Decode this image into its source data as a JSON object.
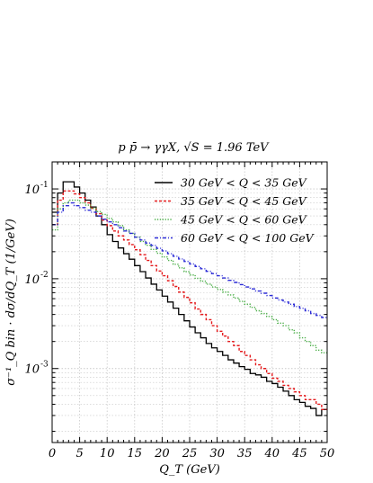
{
  "chart_data": {
    "type": "line",
    "title": "p p̄ → γγX, √S = 1.96 TeV",
    "xlabel": "Q_T (GeV)",
    "ylabel": "σ⁻¹_Q bin · dσ/dQ_T (1/GeV)",
    "xlim": [
      0,
      50
    ],
    "ylim": [
      0.00015,
      0.2
    ],
    "yscale": "log",
    "grid": true,
    "legend_position": "top-right",
    "x_ticks": [
      "0",
      "5",
      "10",
      "15",
      "20",
      "25",
      "30",
      "35",
      "40",
      "45",
      "50"
    ],
    "y_ticks": [
      {
        "base": "10",
        "exp": "-1"
      },
      {
        "base": "10",
        "exp": "-2"
      },
      {
        "base": "10",
        "exp": "-3"
      }
    ],
    "series": [
      {
        "name": "30 GeV < Q <  35 GeV",
        "color": "#000000",
        "style": "solid",
        "values": [
          0.055,
          0.09,
          0.12,
          0.12,
          0.105,
          0.09,
          0.075,
          0.063,
          0.05,
          0.04,
          0.031,
          0.026,
          0.022,
          0.019,
          0.0165,
          0.014,
          0.012,
          0.0102,
          0.0087,
          0.0075,
          0.0064,
          0.0055,
          0.0047,
          0.004,
          0.0034,
          0.0029,
          0.0025,
          0.0022,
          0.0019,
          0.0017,
          0.00155,
          0.0014,
          0.00125,
          0.00115,
          0.00105,
          0.00098,
          0.00088,
          0.00085,
          0.0008,
          0.00072,
          0.00068,
          0.00062,
          0.00056,
          0.0005,
          0.00045,
          0.00042,
          0.00038,
          0.00036,
          0.0003,
          0.00035
        ]
      },
      {
        "name": "35 GeV < Q <  45 GeV",
        "color": "#e41a1c",
        "style": "dashed",
        "values": [
          0.04,
          0.075,
          0.095,
          0.095,
          0.088,
          0.08,
          0.07,
          0.061,
          0.053,
          0.045,
          0.039,
          0.034,
          0.03,
          0.027,
          0.024,
          0.021,
          0.0185,
          0.016,
          0.014,
          0.0122,
          0.0108,
          0.0095,
          0.0082,
          0.0071,
          0.0062,
          0.0054,
          0.0046,
          0.004,
          0.0035,
          0.003,
          0.0026,
          0.0023,
          0.002,
          0.0018,
          0.00155,
          0.0014,
          0.00125,
          0.0011,
          0.001,
          0.00088,
          0.00078,
          0.00072,
          0.00065,
          0.0006,
          0.00055,
          0.0005,
          0.00045,
          0.00045,
          0.0004,
          0.00035
        ]
      },
      {
        "name": "45 GeV < Q <  60 GeV",
        "color": "#4daf4a",
        "style": "dotted",
        "values": [
          0.035,
          0.06,
          0.07,
          0.075,
          0.075,
          0.07,
          0.066,
          0.061,
          0.056,
          0.052,
          0.047,
          0.043,
          0.039,
          0.035,
          0.032,
          0.029,
          0.026,
          0.0236,
          0.0212,
          0.0192,
          0.0175,
          0.016,
          0.0145,
          0.0132,
          0.012,
          0.011,
          0.0101,
          0.0094,
          0.0087,
          0.0081,
          0.0076,
          0.0071,
          0.0066,
          0.0061,
          0.0056,
          0.0052,
          0.0048,
          0.0044,
          0.0041,
          0.0038,
          0.0035,
          0.0032,
          0.003,
          0.0027,
          0.0025,
          0.0022,
          0.002,
          0.0018,
          0.0016,
          0.0015
        ]
      },
      {
        "name": "60 GeV < Q < 100 GeV",
        "color": "#2b2bd6",
        "style": "dashdot",
        "values": [
          0.04,
          0.055,
          0.065,
          0.07,
          0.065,
          0.062,
          0.058,
          0.055,
          0.05,
          0.046,
          0.043,
          0.04,
          0.037,
          0.034,
          0.032,
          0.029,
          0.027,
          0.025,
          0.0235,
          0.0218,
          0.0204,
          0.019,
          0.0178,
          0.0166,
          0.0156,
          0.0146,
          0.0137,
          0.0129,
          0.0121,
          0.0114,
          0.0108,
          0.0102,
          0.0096,
          0.0091,
          0.0086,
          0.0081,
          0.0077,
          0.0073,
          0.0069,
          0.0065,
          0.0061,
          0.0058,
          0.0055,
          0.0052,
          0.0049,
          0.0047,
          0.0044,
          0.0041,
          0.0039,
          0.0037
        ]
      }
    ]
  }
}
